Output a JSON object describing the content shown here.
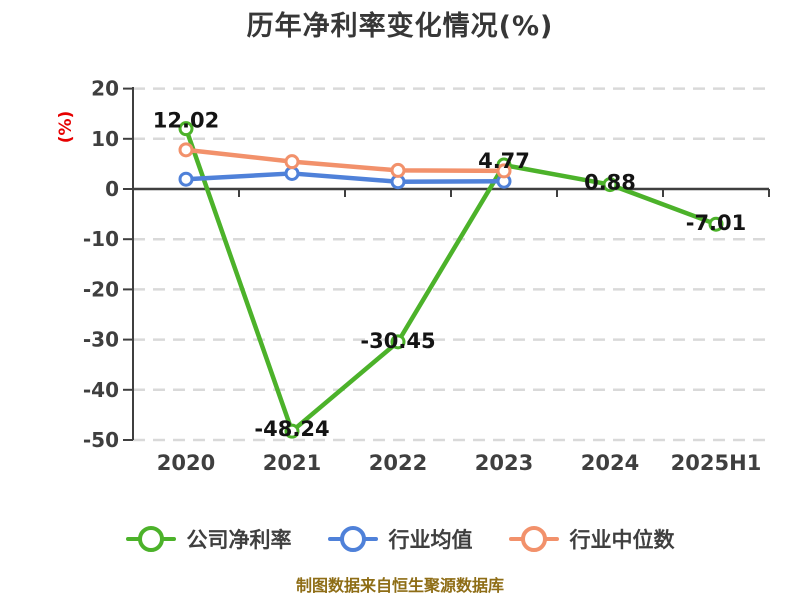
{
  "title": "历年净利率变化情况(%)",
  "y_axis_unit": "(%)",
  "footer": "制图数据来自恒生聚源数据库",
  "colors": {
    "title_text": "#373737",
    "axis": "#3f3f3f",
    "tick_text": "#3f3f3f",
    "grid": "#d9d9d9",
    "data_label": "#141414",
    "unit_label": "#e60000",
    "footer_text": "#8e6d16",
    "background": "#ffffff"
  },
  "chart_data": {
    "type": "line",
    "title": "历年净利率变化情况(%)",
    "categories": [
      "2020",
      "2021",
      "2022",
      "2023",
      "2024",
      "2025H1"
    ],
    "series": [
      {
        "id": "company-net-margin",
        "name": "公司净利率",
        "color": "#4cb22a",
        "values": [
          12.02,
          -48.24,
          -30.45,
          4.77,
          0.88,
          -7.01
        ],
        "labels": [
          "12.02",
          "-48.24",
          "-30.45",
          "4.77",
          "0.88",
          "-7.01"
        ]
      },
      {
        "id": "industry-average",
        "name": "行业均值",
        "color": "#4f81d9",
        "values": [
          1.95,
          3.1,
          1.45,
          1.55,
          null,
          null
        ],
        "labels": null
      },
      {
        "id": "industry-median",
        "name": "行业中位数",
        "color": "#f2916b",
        "values": [
          7.8,
          5.45,
          3.7,
          3.6,
          null,
          null
        ],
        "labels": null
      }
    ],
    "xlabel": "",
    "ylabel": "(%)",
    "ylim": [
      -50,
      20
    ],
    "yticks": [
      20,
      10,
      0,
      -10,
      -20,
      -30,
      -40,
      -50
    ],
    "x_axis_position": "zero",
    "grid": "dashed-horizontal",
    "legend_position": "bottom",
    "marker": "circle-white-fill",
    "source_note": "制图数据来自恒生聚源数据库"
  }
}
